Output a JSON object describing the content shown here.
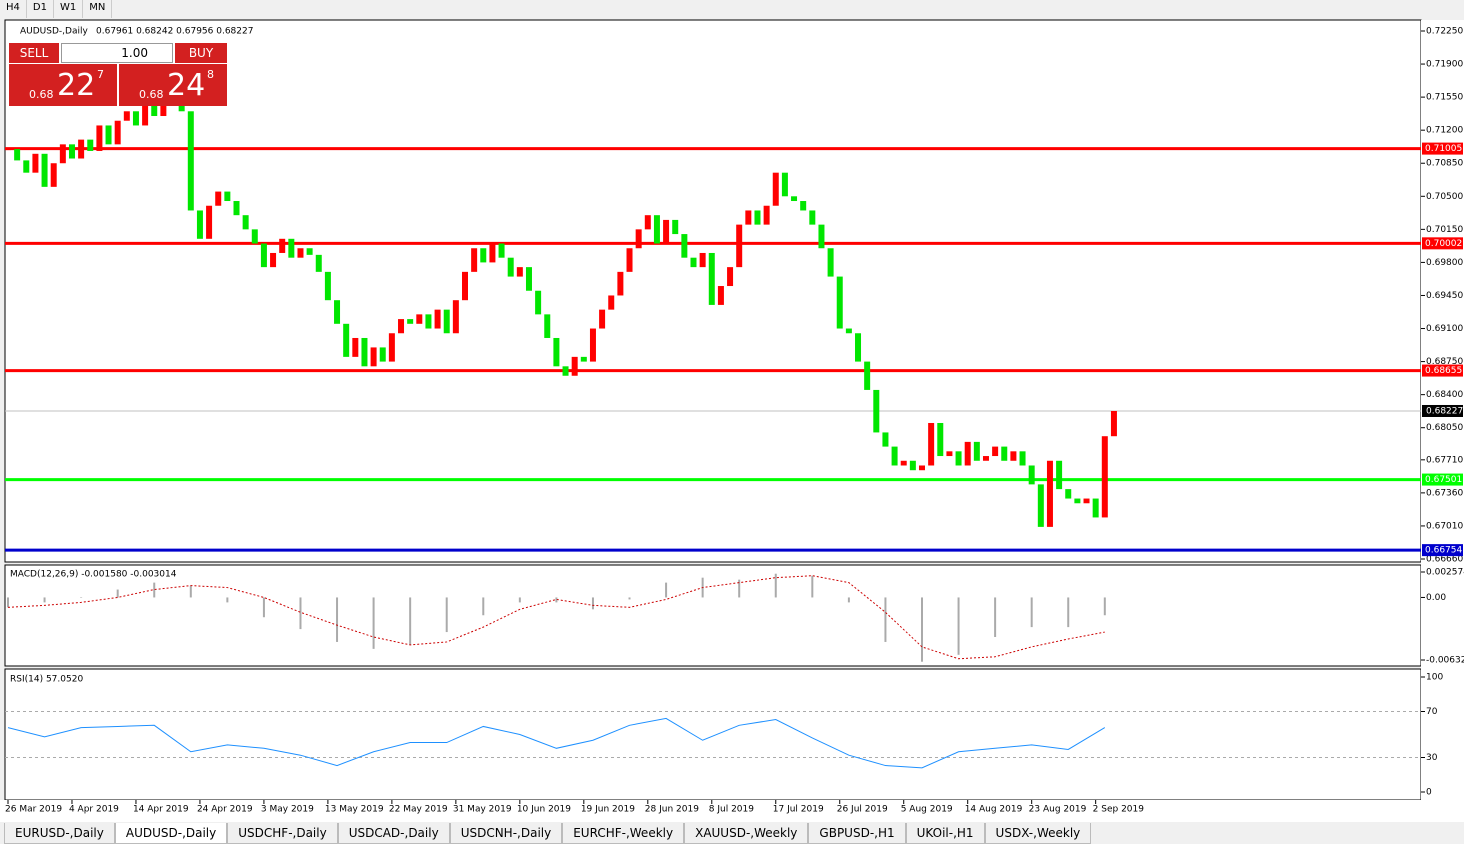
{
  "toolbar": [
    "H4",
    "D1",
    "W1",
    "MN"
  ],
  "trade_panel": {
    "sell": "SELL",
    "lot": "1.00",
    "buy": "BUY",
    "bid_big": "0.68",
    "bid_digits": "22",
    "bid_frac": "7",
    "ask_big": "0.68",
    "ask_digits": "24",
    "ask_frac": "8"
  },
  "tabs": [
    "EURUSD-,Daily",
    "AUDUSD-,Daily",
    "USDCHF-,Daily",
    "USDCAD-,Daily",
    "USDCNH-,Daily",
    "EURCHF-,Weekly",
    "XAUUSD-,Weekly",
    "GBPUSD-,H1",
    "UKOil-,H1",
    "USDX-,Weekly"
  ],
  "active_tab": "AUDUSD-,Daily",
  "chart_data": [
    {
      "type": "candlestick",
      "title": "AUDUSD-,Daily",
      "ohlc_label": "0.67961 0.68242 0.67956 0.68227",
      "date_labels": [
        "26 Mar 2019",
        "4 Apr 2019",
        "14 Apr 2019",
        "24 Apr 2019",
        "3 May 2019",
        "13 May 2019",
        "22 May 2019",
        "31 May 2019",
        "10 Jun 2019",
        "19 Jun 2019",
        "28 Jun 2019",
        "8 Jul 2019",
        "17 Jul 2019",
        "26 Jul 2019",
        "5 Aug 2019",
        "14 Aug 2019",
        "23 Aug 2019",
        "2 Sep 2019"
      ],
      "close": [
        0.71,
        0.7088,
        0.7075,
        0.7095,
        0.706,
        0.7085,
        0.7105,
        0.709,
        0.711,
        0.7098,
        0.7125,
        0.7105,
        0.713,
        0.714,
        0.7125,
        0.7148,
        0.7135,
        0.7155,
        0.716,
        0.714,
        0.7035,
        0.7005,
        0.704,
        0.7055,
        0.7045,
        0.703,
        0.7015,
        0.7,
        0.6975,
        0.699,
        0.7005,
        0.6985,
        0.6995,
        0.6988,
        0.697,
        0.694,
        0.6915,
        0.688,
        0.69,
        0.687,
        0.689,
        0.6875,
        0.6905,
        0.692,
        0.6915,
        0.6925,
        0.691,
        0.693,
        0.6905,
        0.694,
        0.697,
        0.6995,
        0.698,
        0.7,
        0.6985,
        0.6965,
        0.6975,
        0.695,
        0.6925,
        0.69,
        0.687,
        0.686,
        0.688,
        0.6875,
        0.691,
        0.693,
        0.6945,
        0.697,
        0.6995,
        0.7015,
        0.703,
        0.7,
        0.7025,
        0.701,
        0.6985,
        0.6975,
        0.699,
        0.6935,
        0.6955,
        0.6975,
        0.702,
        0.7035,
        0.702,
        0.704,
        0.7075,
        0.705,
        0.7045,
        0.7035,
        0.702,
        0.6995,
        0.6965,
        0.691,
        0.6905,
        0.6875,
        0.6845,
        0.68,
        0.6785,
        0.6765,
        0.677,
        0.676,
        0.6765,
        0.681,
        0.6775,
        0.678,
        0.6765,
        0.679,
        0.677,
        0.6775,
        0.6785,
        0.677,
        0.678,
        0.6765,
        0.6745,
        0.67,
        0.677,
        0.674,
        0.673,
        0.6725,
        0.673,
        0.671,
        0.6796,
        0.68227
      ],
      "up_color": "#ff0000",
      "down_color": "#00e600",
      "ylim": [
        0.6666,
        0.7225
      ],
      "yticks": [
        {
          "value": 0.7225,
          "label": "0.72250"
        },
        {
          "value": 0.719,
          "label": "0.71900"
        },
        {
          "value": 0.7155,
          "label": "0.71550"
        },
        {
          "value": 0.712,
          "label": "0.71200"
        },
        {
          "value": 0.7085,
          "label": "0.70850"
        },
        {
          "value": 0.705,
          "label": "0.70500"
        },
        {
          "value": 0.7015,
          "label": "0.70150"
        },
        {
          "value": 0.698,
          "label": "0.69800"
        },
        {
          "value": 0.6945,
          "label": "0.69450"
        },
        {
          "value": 0.691,
          "label": "0.69100"
        },
        {
          "value": 0.6875,
          "label": "0.68750"
        },
        {
          "value": 0.684,
          "label": "0.68400"
        },
        {
          "value": 0.6805,
          "label": "0.68050"
        },
        {
          "value": 0.6771,
          "label": "0.67710"
        },
        {
          "value": 0.6736,
          "label": "0.67360"
        },
        {
          "value": 0.6701,
          "label": "0.67010"
        },
        {
          "value": 0.6666,
          "label": "0.66660"
        }
      ],
      "levels": [
        {
          "value": 0.71005,
          "label": "0.71005",
          "color": "#ff0000"
        },
        {
          "value": 0.70002,
          "label": "0.70002",
          "color": "#ff0000"
        },
        {
          "value": 0.68655,
          "label": "0.68655",
          "color": "#ff0000"
        },
        {
          "value": 0.67501,
          "label": "0.67501",
          "color": "#00ff00"
        },
        {
          "value": 0.66754,
          "label": "0.66754",
          "color": "#0000cc"
        }
      ],
      "last_price": {
        "value": 0.68227,
        "label": "0.68227"
      }
    },
    {
      "type": "macd",
      "title": "MACD(12,26,9) -0.001580 -0.003014",
      "x": [
        0,
        4,
        8,
        12,
        16,
        20,
        24,
        28,
        32,
        36,
        40,
        44,
        48,
        52,
        56,
        60,
        64,
        68,
        72,
        76,
        80,
        84,
        88,
        92,
        96,
        100,
        104,
        108,
        112,
        116,
        120
      ],
      "main": [
        -0.001,
        -0.0005,
        0.0,
        0.0008,
        0.0015,
        0.0012,
        -0.0005,
        -0.002,
        -0.0032,
        -0.0045,
        -0.0052,
        -0.0048,
        -0.0035,
        -0.0018,
        -0.0005,
        -0.0005,
        -0.0012,
        -0.0002,
        0.0015,
        0.002,
        0.0018,
        0.0024,
        0.0022,
        -0.0005,
        -0.0045,
        -0.0065,
        -0.0058,
        -0.004,
        -0.003,
        -0.003,
        -0.0018
      ],
      "signal": [
        -0.001,
        -0.0008,
        -0.0005,
        0.0,
        0.0008,
        0.0012,
        0.001,
        0.0,
        -0.0015,
        -0.0028,
        -0.004,
        -0.0048,
        -0.0045,
        -0.003,
        -0.0012,
        -0.0002,
        -0.0008,
        -0.001,
        -0.0002,
        0.001,
        0.0015,
        0.002,
        0.0022,
        0.0015,
        -0.0015,
        -0.005,
        -0.0062,
        -0.006,
        -0.005,
        -0.0042,
        -0.0035
      ],
      "hist_color": "#aaaaaa",
      "signal_color": "#cc0000",
      "ylim": [
        -0.006326,
        0.002574
      ],
      "yticks": [
        0.002574,
        {
          "value": 0,
          "label": "0.00"
        },
        -0.006326
      ]
    },
    {
      "type": "line",
      "title": "RSI(14) 57.0520",
      "x": [
        0,
        4,
        8,
        12,
        16,
        20,
        24,
        28,
        32,
        36,
        40,
        44,
        48,
        52,
        56,
        60,
        64,
        68,
        72,
        76,
        80,
        84,
        88,
        92,
        96,
        100,
        104,
        108,
        112,
        116,
        120
      ],
      "values": [
        56,
        48,
        56,
        57,
        58,
        35,
        41,
        38,
        32,
        23,
        35,
        43,
        43,
        57,
        50,
        38,
        45,
        58,
        64,
        45,
        58,
        63,
        47,
        32,
        23,
        21,
        35,
        38,
        41,
        37,
        56
      ],
      "color": "#1e90ff",
      "ylim": [
        0,
        100
      ],
      "yticks": [
        0,
        30,
        70,
        100
      ]
    }
  ]
}
